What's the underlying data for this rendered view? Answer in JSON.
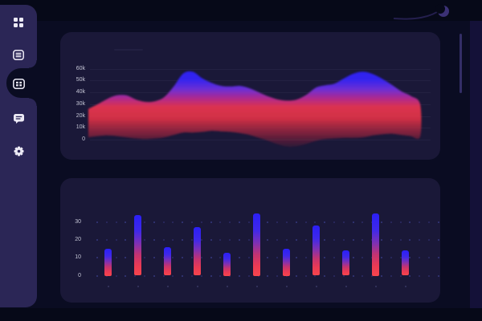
{
  "colors": {
    "page_bg": "#0a0c22",
    "frame_strip": "#060918",
    "sidebar_bg": "#2b2656",
    "panel_bg": "#1a1838",
    "icon_white": "#eceaf5",
    "tick_text": "#c5c6d6",
    "grid_dot_blue": "#3b3e8a",
    "accent_blue": "#2b1ff6",
    "accent_red": "#ef3a4e"
  },
  "sidebar": {
    "items": [
      {
        "id": "dashboard",
        "icon": "dashboard-grid-icon",
        "active": false
      },
      {
        "id": "documents",
        "icon": "document-list-icon",
        "active": false
      },
      {
        "id": "overview",
        "icon": "grid-table-icon",
        "active": true
      },
      {
        "id": "messages",
        "icon": "chat-bubble-icon",
        "active": false
      },
      {
        "id": "settings",
        "icon": "gear-icon",
        "active": false
      }
    ]
  },
  "chart_data": [
    {
      "type": "area",
      "title": "",
      "xlabel": "",
      "ylabel": "",
      "unit": "k",
      "ylim": [
        0,
        60
      ],
      "yticks": [
        "60k",
        "50k",
        "40k",
        "30k",
        "20k",
        "10k",
        "0"
      ],
      "ytick_values": [
        60,
        50,
        40,
        30,
        20,
        10,
        0
      ],
      "x_labels": [],
      "grid": "horizontal-lines",
      "legend": "none",
      "series": [
        {
          "name": "gradient-wave",
          "values_k": [
            26,
            30,
            34.5,
            37.5,
            37.5,
            34,
            32,
            32.5,
            36,
            45,
            56,
            57.5,
            52,
            48,
            45.5,
            45,
            45.5,
            43.5,
            40,
            36.5,
            34,
            33,
            34,
            38,
            44,
            46,
            47.5,
            52,
            56,
            57.5,
            55.5,
            51.5,
            46.5,
            41,
            37,
            30
          ],
          "baseline_k": [
            2,
            3,
            3.5,
            3,
            2,
            1,
            0.5,
            1,
            2,
            4,
            6,
            6,
            6.5,
            7.5,
            7,
            6.5,
            5.5,
            4,
            1.5,
            -1,
            -4,
            -6,
            -5.5,
            -3.5,
            -1,
            0.5,
            1,
            1.5,
            1.5,
            2,
            3.5,
            4.5,
            5,
            4,
            3,
            2.5
          ]
        }
      ],
      "gradient_stops": [
        {
          "offset": 0,
          "color": "#2a1df2",
          "opacity": 1
        },
        {
          "offset": 0.14,
          "color": "#3525ee",
          "opacity": 1
        },
        {
          "offset": 0.25,
          "color": "#6d2fd4",
          "opacity": 1
        },
        {
          "offset": 0.36,
          "color": "#b02a8c",
          "opacity": 1
        },
        {
          "offset": 0.46,
          "color": "#e0334f",
          "opacity": 0.98
        },
        {
          "offset": 0.6,
          "color": "#e83347",
          "opacity": 0.88
        },
        {
          "offset": 0.78,
          "color": "#c22840",
          "opacity": 0.55
        },
        {
          "offset": 1,
          "color": "#8e1a33",
          "opacity": 0
        }
      ]
    },
    {
      "type": "bar",
      "title": "",
      "xlabel": "",
      "ylabel": "",
      "ylim": [
        0,
        35
      ],
      "yticks": [
        "30",
        "20",
        "10",
        "0"
      ],
      "ytick_values": [
        30,
        20,
        10,
        0
      ],
      "categories": [],
      "grid": "dot-matrix",
      "legend": "none",
      "values": [
        15,
        34,
        16,
        27,
        13,
        35,
        15,
        28,
        14,
        35,
        14
      ],
      "bar_gradient_stops": [
        {
          "offset": 0,
          "color": "#2b1ff6"
        },
        {
          "offset": 26,
          "color": "#3e28ea"
        },
        {
          "offset": 48,
          "color": "#8031b2"
        },
        {
          "offset": 66,
          "color": "#c33372"
        },
        {
          "offset": 84,
          "color": "#ea3a54"
        },
        {
          "offset": 100,
          "color": "#f7454d"
        }
      ]
    }
  ]
}
